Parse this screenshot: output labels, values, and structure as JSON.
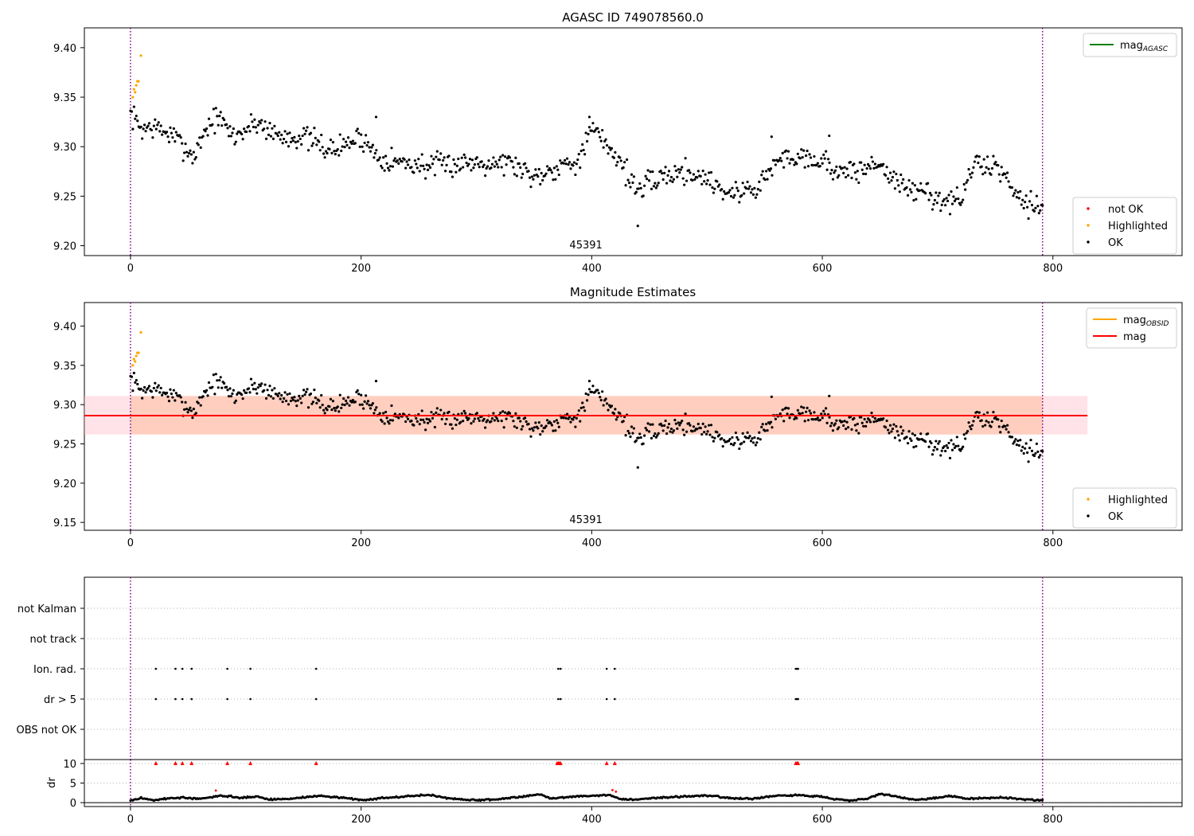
{
  "chart_data": [
    {
      "type": "scatter",
      "title": "AGASC ID 749078560.0",
      "xlim": [
        -40,
        912
      ],
      "ylim": [
        9.19,
        9.42
      ],
      "xticks": [
        0,
        200,
        400,
        600,
        800
      ],
      "yticks": [
        9.2,
        9.25,
        9.3,
        9.35,
        9.4
      ],
      "vlines": [
        0,
        791
      ],
      "obsid_label": {
        "text": "45391",
        "x": 395
      },
      "legend_top": [
        {
          "label": "mag",
          "sub": "AGASC",
          "color": "#008000"
        }
      ],
      "legend_bottom": [
        {
          "label": "not OK",
          "color": "#ff0000"
        },
        {
          "label": "Highlighted",
          "color": "#ffa500"
        },
        {
          "label": "OK",
          "color": "#000000"
        }
      ],
      "series": [
        {
          "name": "Highlighted",
          "color": "#ffa500",
          "x": [
            2,
            3,
            4,
            5,
            6,
            7,
            9
          ],
          "y": [
            9.35,
            9.358,
            9.355,
            9.362,
            9.366,
            9.366,
            9.392
          ]
        },
        {
          "name": "OK",
          "color": "#000000",
          "anchors": [
            [
              0,
              9.333
            ],
            [
              10,
              9.318
            ],
            [
              20,
              9.32
            ],
            [
              35,
              9.312
            ],
            [
              45,
              9.302
            ],
            [
              55,
              9.29
            ],
            [
              65,
              9.318
            ],
            [
              75,
              9.33
            ],
            [
              90,
              9.31
            ],
            [
              110,
              9.325
            ],
            [
              130,
              9.31
            ],
            [
              150,
              9.31
            ],
            [
              175,
              9.296
            ],
            [
              200,
              9.31
            ],
            [
              215,
              9.29
            ],
            [
              230,
              9.285
            ],
            [
              260,
              9.28
            ],
            [
              300,
              9.285
            ],
            [
              330,
              9.284
            ],
            [
              350,
              9.27
            ],
            [
              370,
              9.28
            ],
            [
              390,
              9.288
            ],
            [
              400,
              9.318
            ],
            [
              415,
              9.3
            ],
            [
              425,
              9.285
            ],
            [
              440,
              9.255
            ],
            [
              460,
              9.27
            ],
            [
              480,
              9.275
            ],
            [
              500,
              9.268
            ],
            [
              520,
              9.252
            ],
            [
              545,
              9.26
            ],
            [
              560,
              9.285
            ],
            [
              580,
              9.292
            ],
            [
              600,
              9.285
            ],
            [
              620,
              9.272
            ],
            [
              650,
              9.283
            ],
            [
              670,
              9.258
            ],
            [
              690,
              9.254
            ],
            [
              705,
              9.245
            ],
            [
              720,
              9.245
            ],
            [
              730,
              9.28
            ],
            [
              750,
              9.282
            ],
            [
              765,
              9.26
            ],
            [
              775,
              9.245
            ],
            [
              791,
              9.24
            ]
          ],
          "n": 780,
          "x_start": 0,
          "x_end": 791,
          "noise": 0.009,
          "seed": 7,
          "extra": [
            [
              440,
              9.22
            ],
            [
              398,
              9.33
            ],
            [
              213,
              9.33
            ],
            [
              556,
              9.31
            ],
            [
              606,
              9.311
            ]
          ]
        }
      ]
    },
    {
      "type": "scatter",
      "title": "Magnitude Estimates",
      "xlim": [
        -40,
        912
      ],
      "ylim": [
        9.14,
        9.43
      ],
      "xticks": [
        0,
        200,
        400,
        600,
        800
      ],
      "yticks": [
        9.15,
        9.2,
        9.25,
        9.3,
        9.35,
        9.4
      ],
      "vlines": [
        0,
        791
      ],
      "obsid_label": {
        "text": "45391",
        "x": 395
      },
      "mag_line": {
        "value": 9.286,
        "color": "#ff0000",
        "x": [
          -40,
          830
        ]
      },
      "mag_band": {
        "low": 9.262,
        "high": 9.311,
        "x": [
          -40,
          830
        ],
        "color": "#ffc0cb"
      },
      "obsid_band": {
        "low": 9.262,
        "high": 9.311,
        "x": [
          0,
          791
        ],
        "color": "#ffa060"
      },
      "legend_top": [
        {
          "label": "mag",
          "sub": "OBSID",
          "color": "#ffa500"
        },
        {
          "label": "mag",
          "sub": "",
          "color": "#ff0000"
        }
      ],
      "legend_bottom": [
        {
          "label": "Highlighted",
          "color": "#ffa500"
        },
        {
          "label": "OK",
          "color": "#000000"
        }
      ]
    },
    {
      "type": "scatter",
      "xlim": [
        -40,
        912
      ],
      "xticks": [
        0,
        200,
        400,
        600,
        800
      ],
      "vlines": [
        0,
        791
      ],
      "flag_labels": [
        "not Kalman",
        "not track",
        "Ion. rad.",
        "dr > 5",
        "OBS not OK"
      ],
      "flag_points_x": [
        22,
        39,
        45,
        53,
        84,
        104,
        161,
        371,
        373,
        413,
        420,
        577,
        578,
        579
      ],
      "dr": {
        "ylabel": "dr",
        "yticks": [
          0,
          5,
          10
        ],
        "ylim": [
          -1,
          11
        ],
        "points_over_10": [
          22,
          39,
          45,
          53,
          84,
          104,
          161,
          370,
          371,
          372,
          373,
          413,
          420,
          577,
          578,
          579
        ],
        "red_points": [
          [
            74,
            3.1
          ],
          [
            418,
            3.2
          ],
          [
            421,
            2.8
          ]
        ],
        "anchors": [
          [
            0,
            0.5
          ],
          [
            10,
            1.2
          ],
          [
            20,
            0.6
          ],
          [
            30,
            1.0
          ],
          [
            45,
            1.3
          ],
          [
            60,
            0.9
          ],
          [
            70,
            1.4
          ],
          [
            80,
            1.8
          ],
          [
            95,
            1.2
          ],
          [
            110,
            1.6
          ],
          [
            120,
            0.8
          ],
          [
            140,
            1.0
          ],
          [
            160,
            1.7
          ],
          [
            180,
            1.4
          ],
          [
            200,
            0.7
          ],
          [
            220,
            1.2
          ],
          [
            240,
            1.6
          ],
          [
            260,
            2.0
          ],
          [
            275,
            1.1
          ],
          [
            300,
            0.6
          ],
          [
            320,
            0.9
          ],
          [
            340,
            1.6
          ],
          [
            355,
            2.1
          ],
          [
            365,
            1.0
          ],
          [
            375,
            1.4
          ],
          [
            390,
            1.6
          ],
          [
            405,
            1.8
          ],
          [
            415,
            2.0
          ],
          [
            425,
            0.9
          ],
          [
            440,
            0.8
          ],
          [
            460,
            1.3
          ],
          [
            480,
            1.6
          ],
          [
            500,
            1.8
          ],
          [
            520,
            1.2
          ],
          [
            540,
            1.0
          ],
          [
            560,
            1.7
          ],
          [
            580,
            1.9
          ],
          [
            600,
            1.5
          ],
          [
            610,
            1.0
          ],
          [
            625,
            0.5
          ],
          [
            640,
            1.1
          ],
          [
            650,
            2.3
          ],
          [
            665,
            1.5
          ],
          [
            680,
            0.7
          ],
          [
            695,
            1.0
          ],
          [
            710,
            1.7
          ],
          [
            725,
            1.0
          ],
          [
            740,
            1.2
          ],
          [
            760,
            1.3
          ],
          [
            775,
            0.8
          ],
          [
            791,
            0.6
          ]
        ],
        "n": 780,
        "x_start": 0,
        "x_end": 791,
        "noise": 0.15,
        "seed": 3
      }
    }
  ]
}
